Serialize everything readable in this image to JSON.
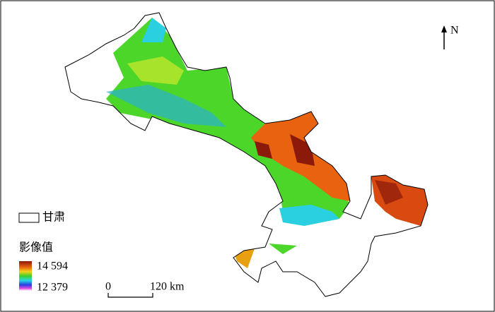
{
  "north": "N",
  "legend": {
    "boundary_label": "甘肃",
    "title": "影像值",
    "max_label": "14 594",
    "min_label": "12 379"
  },
  "scale_bar": {
    "start_label": "0",
    "end_label": "120 km"
  }
}
